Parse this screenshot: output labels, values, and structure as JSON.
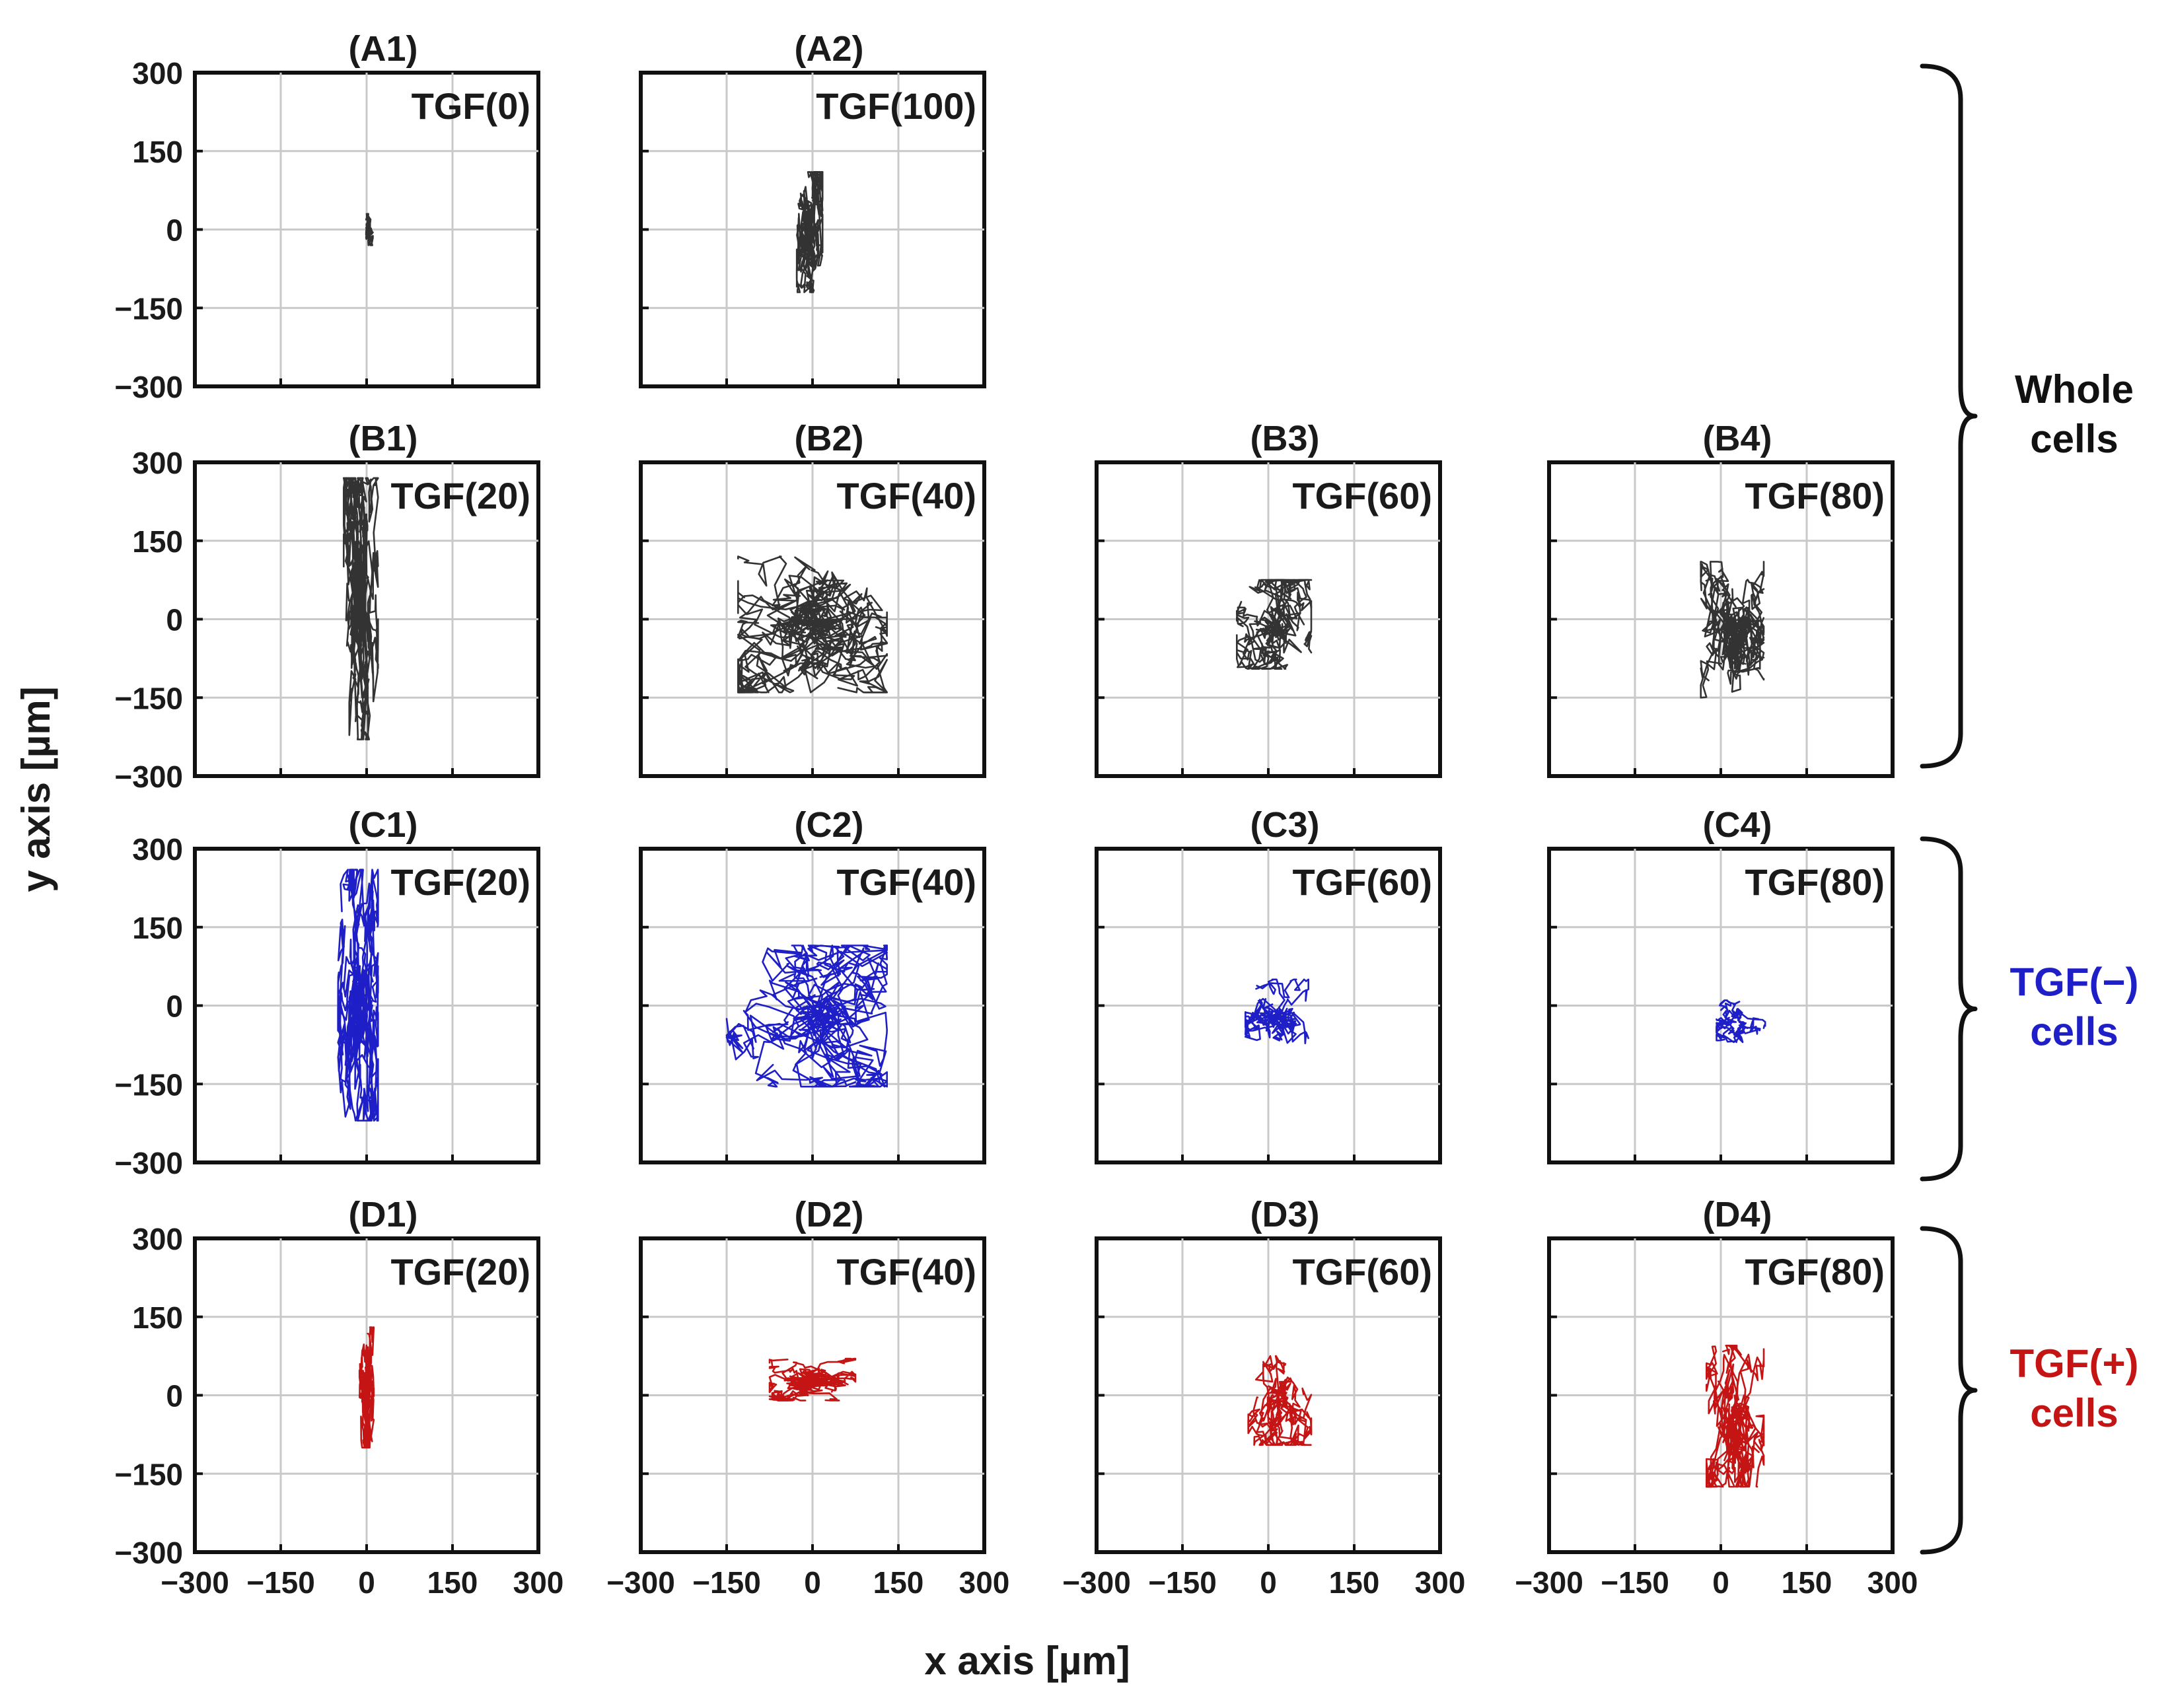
{
  "chart_data": {
    "type": "line",
    "title": "",
    "xlabel": "x axis [µm]",
    "ylabel": "y axis [µm]",
    "xlim": [
      -300,
      300
    ],
    "ylim": [
      -300,
      300
    ],
    "grid": true,
    "x_ticks": [
      "−300",
      "−150",
      "0",
      "150",
      "300"
    ],
    "y_ticks": [
      "300",
      "150",
      "0",
      "−150",
      "−300"
    ],
    "series_colors": {
      "whole": "#333333",
      "tgf_neg": "#1f1fc8",
      "tgf_pos": "#c41414"
    },
    "panels": [
      {
        "id": "(A1)",
        "condition": "TGF(0)",
        "group": "whole",
        "row": 0,
        "col": 0,
        "center": [
          5,
          0
        ],
        "spread": [
          12,
          60
        ],
        "tracks": 10,
        "steps": 10
      },
      {
        "id": "(A2)",
        "condition": "TGF(100)",
        "group": "whole",
        "row": 0,
        "col": 1,
        "center": [
          -5,
          -5
        ],
        "spread": [
          45,
          230
        ],
        "tracks": 18,
        "steps": 14
      },
      {
        "id": "(B1)",
        "condition": "TGF(20)",
        "group": "whole",
        "row": 1,
        "col": 0,
        "center": [
          -10,
          20
        ],
        "spread": [
          60,
          500
        ],
        "tracks": 20,
        "steps": 16
      },
      {
        "id": "(B2)",
        "condition": "TGF(40)",
        "group": "whole",
        "row": 1,
        "col": 1,
        "center": [
          0,
          -10
        ],
        "spread": [
          260,
          260
        ],
        "tracks": 22,
        "steps": 16
      },
      {
        "id": "(B3)",
        "condition": "TGF(60)",
        "group": "whole",
        "row": 1,
        "col": 2,
        "center": [
          10,
          -10
        ],
        "spread": [
          130,
          170
        ],
        "tracks": 16,
        "steps": 14
      },
      {
        "id": "(B4)",
        "condition": "TGF(80)",
        "group": "whole",
        "row": 1,
        "col": 3,
        "center": [
          20,
          -20
        ],
        "spread": [
          110,
          260
        ],
        "tracks": 18,
        "steps": 14
      },
      {
        "id": "(C1)",
        "condition": "TGF(20)",
        "group": "tgf_neg",
        "row": 2,
        "col": 0,
        "center": [
          -15,
          20
        ],
        "spread": [
          70,
          480
        ],
        "tracks": 18,
        "steps": 16
      },
      {
        "id": "(C2)",
        "condition": "TGF(40)",
        "group": "tgf_neg",
        "row": 2,
        "col": 1,
        "center": [
          -10,
          -20
        ],
        "spread": [
          280,
          270
        ],
        "tracks": 18,
        "steps": 16
      },
      {
        "id": "(C3)",
        "condition": "TGF(60)",
        "group": "tgf_neg",
        "row": 2,
        "col": 2,
        "center": [
          15,
          -20
        ],
        "spread": [
          110,
          140
        ],
        "tracks": 10,
        "steps": 14
      },
      {
        "id": "(C4)",
        "condition": "TGF(80)",
        "group": "tgf_neg",
        "row": 2,
        "col": 3,
        "center": [
          35,
          -30
        ],
        "spread": [
          85,
          80
        ],
        "tracks": 8,
        "steps": 12
      },
      {
        "id": "(D1)",
        "condition": "TGF(20)",
        "group": "tgf_pos",
        "row": 3,
        "col": 0,
        "center": [
          0,
          15
        ],
        "spread": [
          25,
          230
        ],
        "tracks": 12,
        "steps": 14
      },
      {
        "id": "(D2)",
        "condition": "TGF(40)",
        "group": "tgf_pos",
        "row": 3,
        "col": 1,
        "center": [
          0,
          30
        ],
        "spread": [
          150,
          80
        ],
        "tracks": 14,
        "steps": 14
      },
      {
        "id": "(D3)",
        "condition": "TGF(60)",
        "group": "tgf_pos",
        "row": 3,
        "col": 2,
        "center": [
          20,
          -10
        ],
        "spread": [
          110,
          170
        ],
        "tracks": 12,
        "steps": 14
      },
      {
        "id": "(D4)",
        "condition": "TGF(80)",
        "group": "tgf_pos",
        "row": 3,
        "col": 3,
        "center": [
          25,
          -40
        ],
        "spread": [
          100,
          270
        ],
        "tracks": 18,
        "steps": 14
      }
    ],
    "group_labels": [
      {
        "group": "whole",
        "line1": "Whole",
        "line2": "cells",
        "color": "#111111"
      },
      {
        "group": "tgf_neg",
        "line1": "TGF(−)",
        "line2": "cells",
        "color": "#1f1fc8"
      },
      {
        "group": "tgf_pos",
        "line1": "TGF(+)",
        "line2": "cells",
        "color": "#c41414"
      }
    ]
  }
}
